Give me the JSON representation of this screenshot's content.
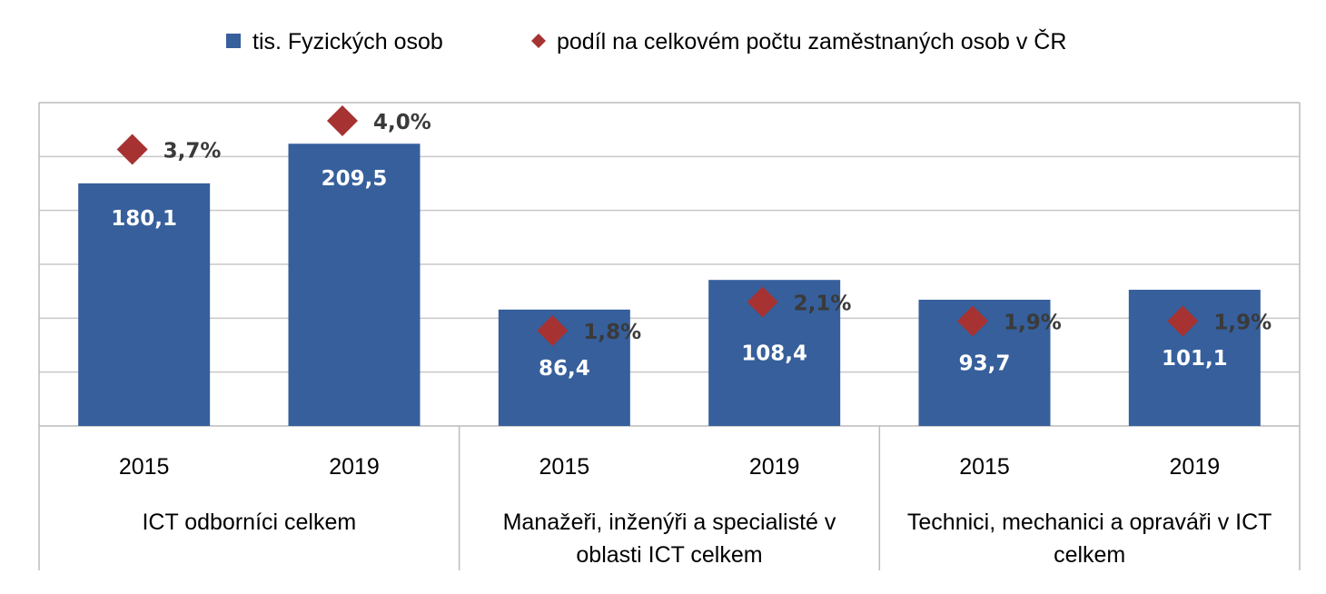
{
  "colors": {
    "bar": "#365f9c",
    "marker": "#a63232",
    "grid": "#c8c8c8",
    "frame": "#bcbcbc"
  },
  "chart_data": {
    "type": "bar",
    "legend": {
      "placement": "top",
      "entries": [
        {
          "name": "tis. Fyzických osob",
          "marker": "square"
        },
        {
          "name": "podíl na celkovém počtu zaměstnaných osob v ČR",
          "marker": "diamond"
        }
      ]
    },
    "grid": true,
    "ylim": [
      0,
      240
    ],
    "groups": [
      {
        "label_lines": [
          "ICT odborníci celkem"
        ]
      },
      {
        "label_lines": [
          "Manažeři, inženýři a specialisté v",
          "oblasti ICT celkem"
        ]
      },
      {
        "label_lines": [
          "Technici, mechanici a opraváři v ICT",
          "celkem"
        ]
      }
    ],
    "categories": [
      "2015",
      "2019",
      "2015",
      "2019",
      "2015",
      "2019"
    ],
    "series": [
      {
        "name": "tis. Fyzických osob",
        "type": "bar",
        "values": [
          180.1,
          209.5,
          86.4,
          108.4,
          93.7,
          101.1
        ],
        "labels": [
          "180,1",
          "209,5",
          "86,4",
          "108,4",
          "93,7",
          "101,1"
        ]
      },
      {
        "name": "podíl na celkovém počtu zaměstnaných osob v ČR",
        "type": "scatter",
        "values": [
          3.7,
          4.0,
          1.8,
          2.1,
          1.9,
          1.9
        ],
        "labels": [
          "3,7%",
          "4,0%",
          "1,8%",
          "2,1%",
          "1,9%",
          "1,9%"
        ]
      }
    ]
  }
}
